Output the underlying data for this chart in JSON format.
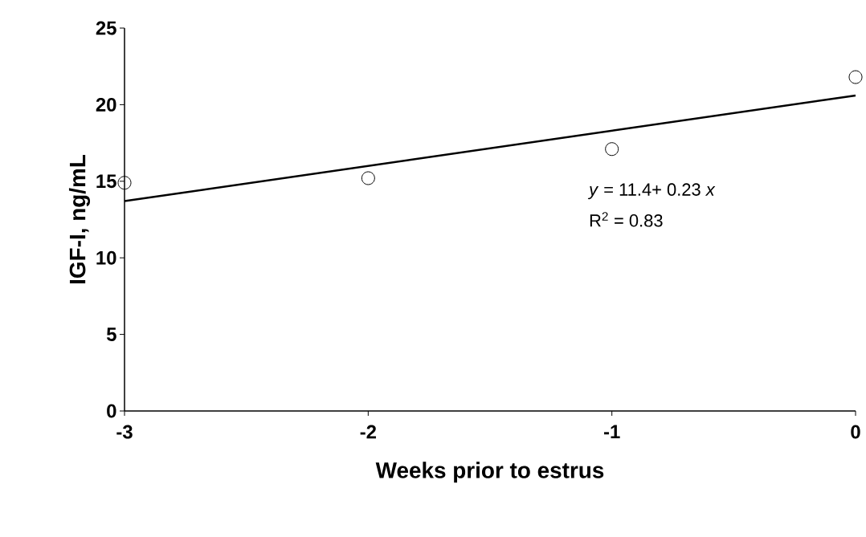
{
  "chart_data": {
    "type": "scatter",
    "xlabel": "Weeks prior to estrus",
    "ylabel": "IGF-I, ng/mL",
    "xlim": [
      -3,
      0
    ],
    "xticks": [
      -3,
      -2,
      -1,
      0
    ],
    "ylim": [
      0,
      25
    ],
    "yticks": [
      0,
      5,
      10,
      15,
      20,
      25
    ],
    "grid": false,
    "series": [
      {
        "marker": "circle",
        "color": "#000000",
        "x": [
          -3,
          -2,
          -1,
          0
        ],
        "values": [
          14.9,
          15.2,
          17.1,
          21.8
        ]
      },
      {
        "type": "line",
        "marker": "none",
        "line_style": "solid",
        "color": "#000000",
        "x": [
          -3,
          0
        ],
        "values": [
          13.7,
          20.6
        ]
      }
    ],
    "annotations": [
      "*y* = 11.4+ 0.23 *x*",
      "R$^{2}$ = 0.83"
    ]
  }
}
